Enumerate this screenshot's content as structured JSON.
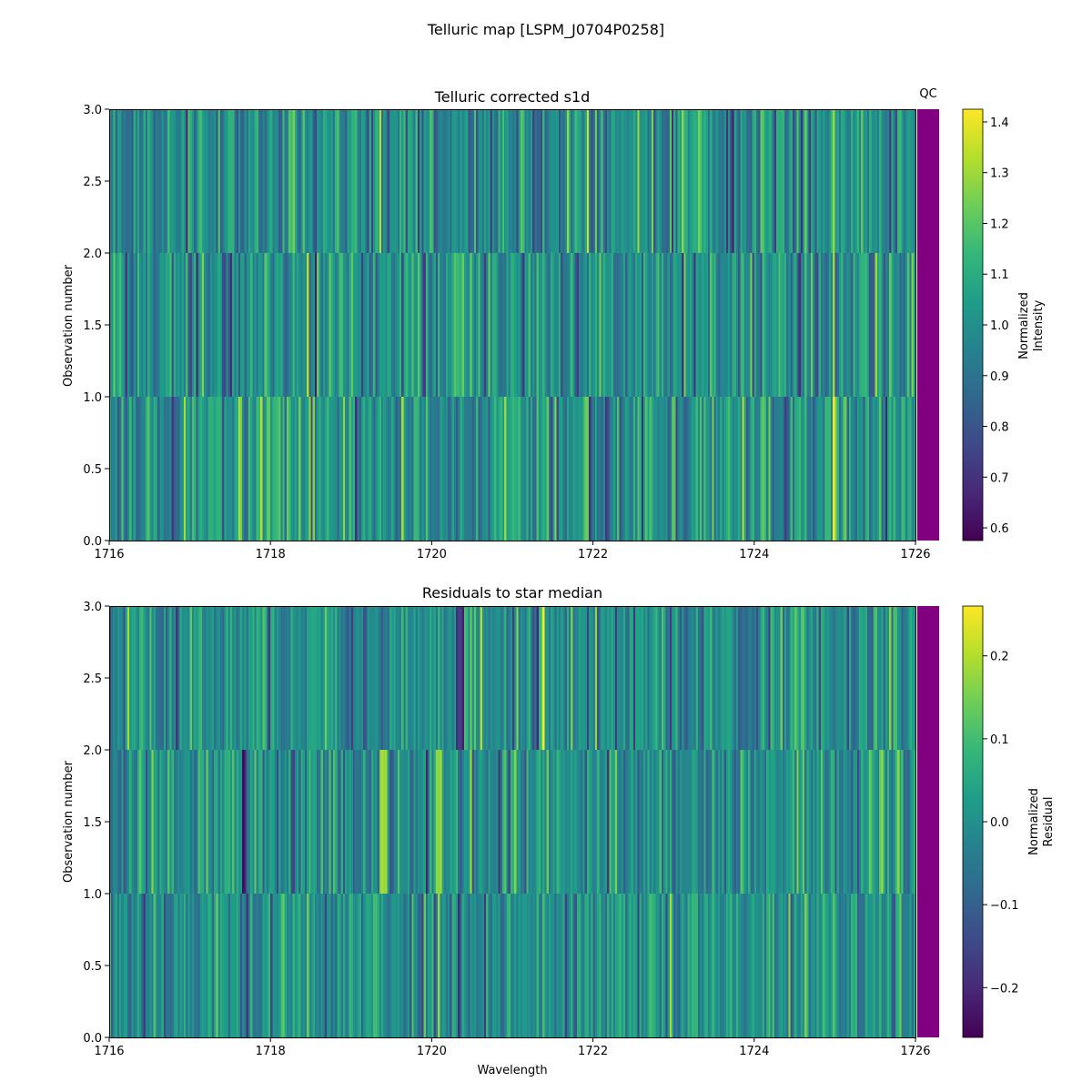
{
  "figure": {
    "title": "Telluric map [LSPM_J0704P0258]"
  },
  "colors": {
    "viridis": [
      "#440154",
      "#482878",
      "#3e4989",
      "#31688e",
      "#26828e",
      "#1f9e89",
      "#35b779",
      "#6ece58",
      "#b5de2b",
      "#fde725"
    ],
    "qc_fill": "#800080",
    "axis": "#000000"
  },
  "chart_data": [
    {
      "type": "heatmap",
      "id": "top",
      "title": "Telluric corrected s1d",
      "xlabel": "",
      "ylabel": "Observation number",
      "xlim": [
        1716,
        1726
      ],
      "ylim": [
        0.0,
        3.0
      ],
      "xticks": [
        1716,
        1718,
        1720,
        1722,
        1724,
        1726
      ],
      "xtick_labels": [
        "1716",
        "1718",
        "1720",
        "1722",
        "1724",
        "1726"
      ],
      "yticks": [
        0.0,
        0.5,
        1.0,
        1.5,
        2.0,
        2.5,
        3.0
      ],
      "ytick_labels": [
        "0.0",
        "0.5",
        "1.0",
        "1.5",
        "2.0",
        "2.5",
        "3.0"
      ],
      "rows": 3,
      "columns": 400,
      "qc_label": "QC",
      "qc_status": "pass",
      "colorbar": {
        "label_lines": [
          "Normalized",
          "Intensity"
        ],
        "vmin": 0.575,
        "vmax": 1.425,
        "ticks": [
          0.6,
          0.7,
          0.8,
          0.9,
          1.0,
          1.1,
          1.2,
          1.3,
          1.4
        ],
        "tick_labels": [
          "0.6",
          "0.7",
          "0.8",
          "0.9",
          "1.0",
          "1.1",
          "1.2",
          "1.3",
          "1.4"
        ]
      },
      "value_model": {
        "center": 1.0,
        "spread": 0.12,
        "seed": 17,
        "features": [
          {
            "wavelength": 1718.0,
            "width": 0.12,
            "row": 0,
            "delta": 0.18
          },
          {
            "wavelength": 1716.75,
            "width": 0.05,
            "row": 0,
            "delta": -0.22
          },
          {
            "wavelength": 1720.35,
            "width": 0.1,
            "row": 1,
            "delta": 0.2
          },
          {
            "wavelength": 1723.7,
            "width": 0.06,
            "row": 2,
            "delta": -0.25
          },
          {
            "wavelength": 1725.0,
            "width": 0.03,
            "row": 0,
            "delta": 0.3
          }
        ]
      }
    },
    {
      "type": "heatmap",
      "id": "bottom",
      "title": "Residuals to star median",
      "xlabel": "Wavelength",
      "ylabel": "Observation number",
      "xlim": [
        1716,
        1726
      ],
      "ylim": [
        0.0,
        3.0
      ],
      "xticks": [
        1716,
        1718,
        1720,
        1722,
        1724,
        1726
      ],
      "xtick_labels": [
        "1716",
        "1718",
        "1720",
        "1722",
        "1724",
        "1726"
      ],
      "yticks": [
        0.0,
        0.5,
        1.0,
        1.5,
        2.0,
        2.5,
        3.0
      ],
      "ytick_labels": [
        "0.0",
        "0.5",
        "1.0",
        "1.5",
        "2.0",
        "2.5",
        "3.0"
      ],
      "rows": 3,
      "columns": 400,
      "qc_label": "",
      "qc_status": "pass",
      "colorbar": {
        "label_lines": [
          "Normalized",
          "Residual"
        ],
        "vmin": -0.26,
        "vmax": 0.26,
        "ticks": [
          -0.2,
          -0.1,
          0.0,
          0.1,
          0.2
        ],
        "tick_labels": [
          "−0.2",
          "−0.1",
          "0.0",
          "0.1",
          "0.2"
        ]
      },
      "value_model": {
        "center": 0.0,
        "spread": 0.07,
        "seed": 53,
        "features": [
          {
            "wavelength": 1720.1,
            "width": 0.04,
            "row": 1,
            "delta": 0.22
          },
          {
            "wavelength": 1720.35,
            "width": 0.04,
            "row": 2,
            "delta": -0.24
          },
          {
            "wavelength": 1717.7,
            "width": 0.06,
            "row": 1,
            "delta": -0.18
          },
          {
            "wavelength": 1719.4,
            "width": 0.04,
            "row": 1,
            "delta": 0.16
          },
          {
            "wavelength": 1721.4,
            "width": 0.03,
            "row": 2,
            "delta": 0.2
          }
        ]
      }
    }
  ]
}
